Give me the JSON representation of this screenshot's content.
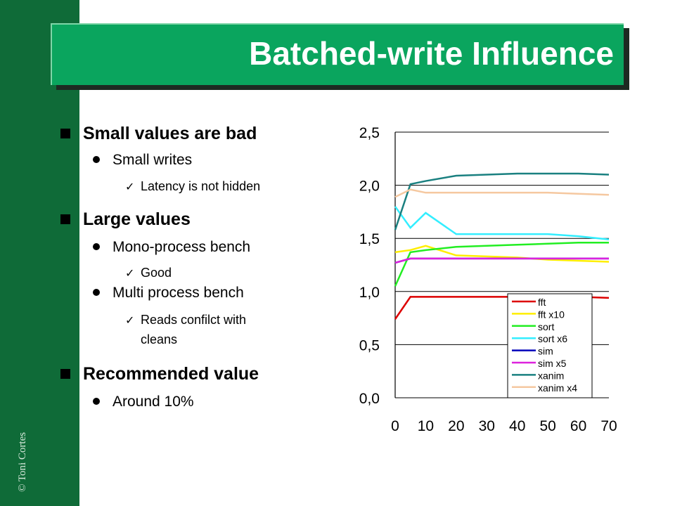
{
  "slide": {
    "title": "Batched-write Influence",
    "copyright": "© Toni Cortes"
  },
  "bullets": [
    {
      "level": 1,
      "text": "Small values are bad"
    },
    {
      "level": 2,
      "text": "Small writes"
    },
    {
      "level": 3,
      "text": "Latency is not hidden"
    },
    {
      "level": 1,
      "text": "Large values"
    },
    {
      "level": 2,
      "text": "Mono-process bench"
    },
    {
      "level": 3,
      "text": "Good"
    },
    {
      "level": 2,
      "text": "Multi process bench"
    },
    {
      "level": 3,
      "text": "Reads confilct with",
      "continuation": "cleans"
    },
    {
      "level": 1,
      "text": "Recommended value"
    },
    {
      "level": 2,
      "text": "Around 10%"
    }
  ],
  "chart_data": {
    "type": "line",
    "x": [
      0,
      5,
      10,
      20,
      30,
      40,
      50,
      60,
      70
    ],
    "xlim": [
      0,
      70
    ],
    "ylim": [
      0,
      2.5
    ],
    "xticks": [
      "0",
      "10",
      "20",
      "30",
      "40",
      "50",
      "60",
      "70"
    ],
    "xtick_values": [
      0,
      10,
      20,
      30,
      40,
      50,
      60,
      70
    ],
    "yticks": [
      "0,0",
      "0,5",
      "1,0",
      "1,5",
      "2,0",
      "2,5"
    ],
    "ytick_values": [
      0,
      0.5,
      1.0,
      1.5,
      2.0,
      2.5
    ],
    "grid": "horizontal",
    "legend_position": "bottom-right",
    "series": [
      {
        "name": "fft",
        "color": "#dd0000",
        "values": [
          0.74,
          0.95,
          0.95,
          0.95,
          0.95,
          0.95,
          0.95,
          0.95,
          0.94
        ]
      },
      {
        "name": "fft x10",
        "color": "#ffee00",
        "values": [
          1.37,
          1.39,
          1.43,
          1.34,
          1.33,
          1.32,
          1.3,
          1.29,
          1.28
        ]
      },
      {
        "name": "sort",
        "color": "#22ee22",
        "values": [
          1.05,
          1.37,
          1.39,
          1.42,
          1.43,
          1.44,
          1.45,
          1.46,
          1.46
        ]
      },
      {
        "name": "sort x6",
        "color": "#33eeff",
        "values": [
          1.8,
          1.6,
          1.74,
          1.54,
          1.54,
          1.54,
          1.54,
          1.52,
          1.49
        ]
      },
      {
        "name": "sim",
        "color": "#0000bb",
        "values": [
          1.27,
          1.31,
          1.31,
          1.31,
          1.31,
          1.31,
          1.31,
          1.31,
          1.31
        ]
      },
      {
        "name": "sim x5",
        "color": "#dd22dd",
        "values": [
          1.27,
          1.31,
          1.31,
          1.31,
          1.31,
          1.31,
          1.31,
          1.31,
          1.31
        ]
      },
      {
        "name": "xanim",
        "color": "#1a8080",
        "values": [
          1.58,
          2.01,
          2.04,
          2.09,
          2.1,
          2.11,
          2.11,
          2.11,
          2.1
        ]
      },
      {
        "name": "xanim x4",
        "color": "#f5c8a0",
        "values": [
          1.89,
          1.96,
          1.93,
          1.93,
          1.93,
          1.93,
          1.93,
          1.92,
          1.91
        ]
      }
    ]
  }
}
